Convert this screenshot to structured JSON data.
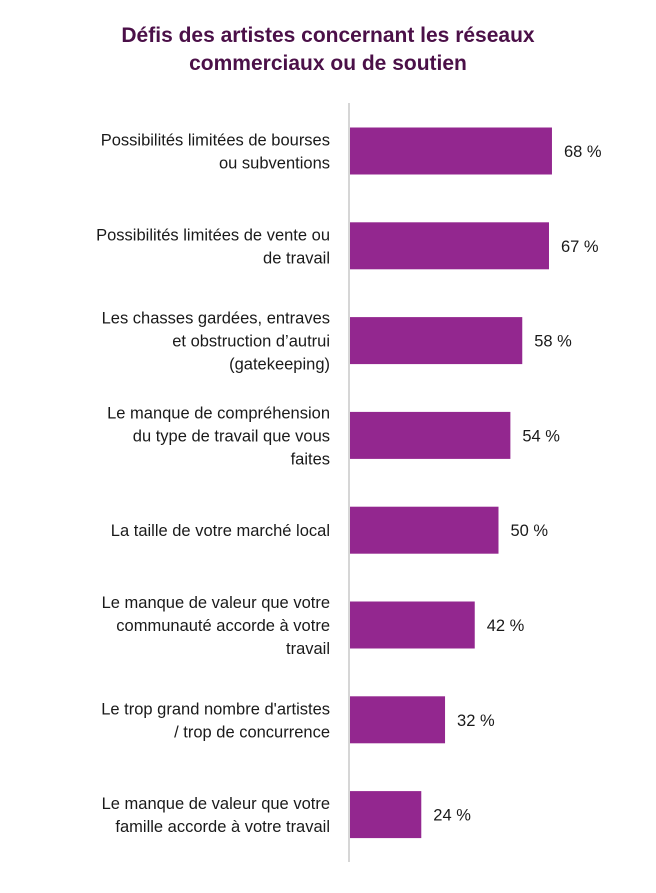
{
  "chart_data": {
    "type": "bar",
    "orientation": "horizontal",
    "title_lines": [
      "Défis des artistes concernant les réseaux",
      "commerciaux ou de soutien"
    ],
    "categories": [
      [
        "Possibilités limitées de bourses",
        "ou subventions"
      ],
      [
        "Possibilités limitées de vente ou",
        "de travail"
      ],
      [
        "Les chasses gardées, entraves",
        "et obstruction d’autrui",
        "(gatekeeping)"
      ],
      [
        "Le manque de compréhension",
        "du type de travail que vous",
        "faites"
      ],
      [
        "La taille de votre marché local"
      ],
      [
        "Le manque de valeur que votre",
        "communauté accorde à votre",
        "travail"
      ],
      [
        "Le trop grand nombre d'artistes",
        "/ trop de concurrence"
      ],
      [
        "Le manque de valeur que votre",
        "famille accorde à votre travail"
      ]
    ],
    "values": [
      68,
      67,
      58,
      54,
      50,
      42,
      32,
      24
    ],
    "value_labels": [
      "68 %",
      "67 %",
      "58 %",
      "54 %",
      "50 %",
      "42 %",
      "32 %",
      "24 %"
    ],
    "xlim": [
      0,
      100
    ],
    "grid": false,
    "legend": "none",
    "bar_color": "#93278f",
    "title_color": "#4b1048",
    "axis_color": "#c8c8c8"
  }
}
